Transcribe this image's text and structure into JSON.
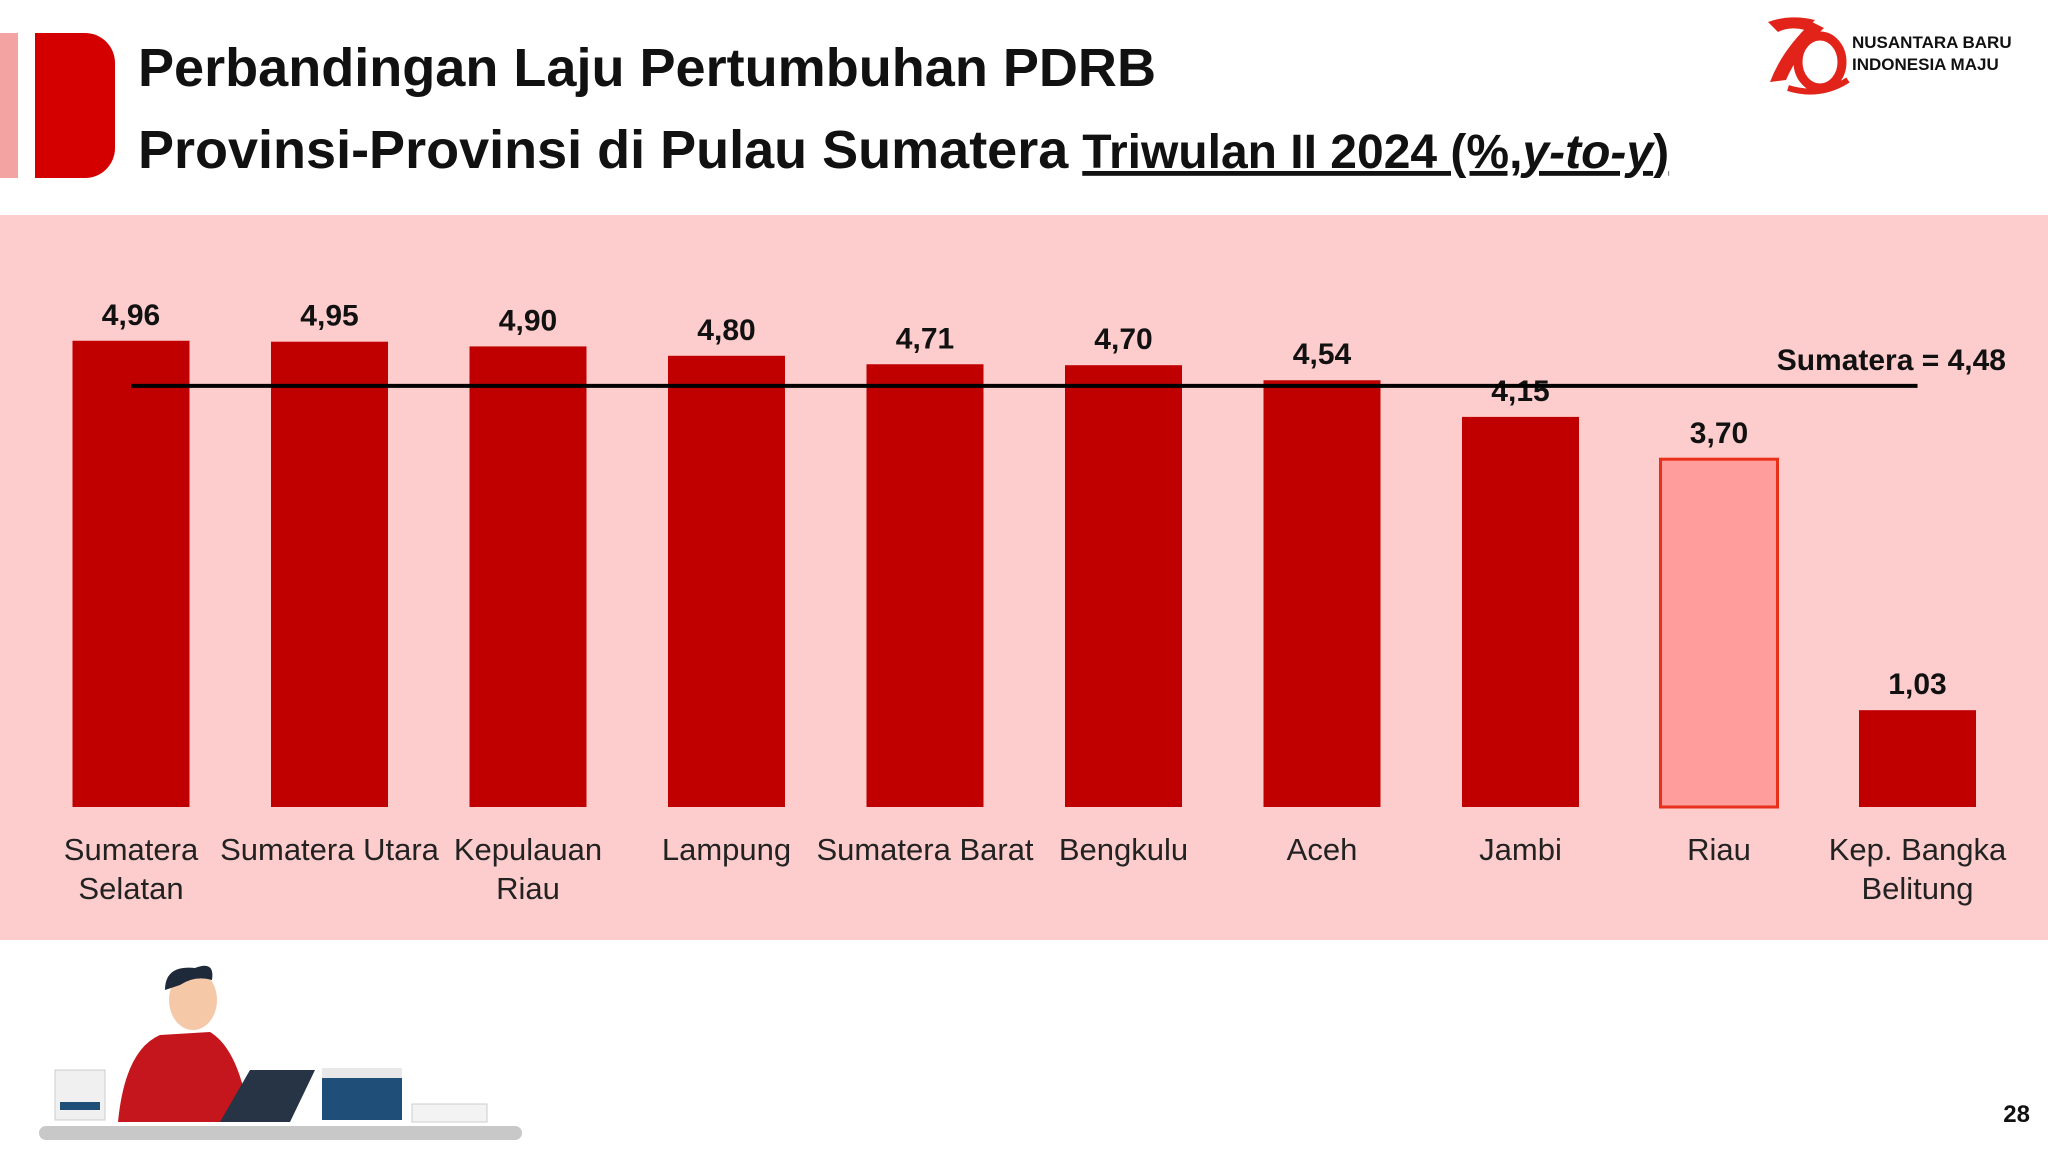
{
  "header": {
    "title_line1": "Perbandingan Laju Pertumbuhan PDRB",
    "title_line2": "Provinsi-Provinsi di Pulau Sumatera",
    "period_start": "Triwulan II 2024 (%,",
    "period_italic": "y-to-y",
    "period_end": ")"
  },
  "logo": {
    "line1": "NUSANTARA BARU",
    "line2": "INDONESIA MAJU"
  },
  "page_number": "28",
  "chart_data": {
    "type": "bar",
    "categories": [
      [
        "Sumatera",
        "Selatan"
      ],
      [
        "Sumatera Utara"
      ],
      [
        "Kepulauan",
        "Riau"
      ],
      [
        "Lampung"
      ],
      [
        "Sumatera Barat"
      ],
      [
        "Bengkulu"
      ],
      [
        "Aceh"
      ],
      [
        "Jambi"
      ],
      [
        "Riau"
      ],
      [
        "Kep. Bangka",
        "Belitung"
      ]
    ],
    "values": [
      4.96,
      4.95,
      4.9,
      4.8,
      4.71,
      4.7,
      4.54,
      4.15,
      3.7,
      1.03
    ],
    "value_labels": [
      "4,96",
      "4,95",
      "4,90",
      "4,80",
      "4,71",
      "4,70",
      "4,54",
      "4,15",
      "3,70",
      "1,03"
    ],
    "colors": [
      "#c00000",
      "#c00000",
      "#c00000",
      "#c00000",
      "#c00000",
      "#c00000",
      "#c00000",
      "#c00000",
      "#ff9c9c",
      "#c00000"
    ],
    "ylim": [
      0,
      5
    ],
    "reference_line": {
      "value": 4.48,
      "label": "Sumatera = 4,48"
    }
  }
}
